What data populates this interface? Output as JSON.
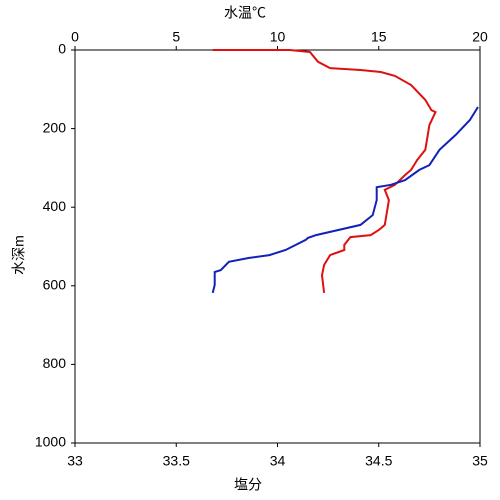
{
  "chart_data": {
    "type": "line",
    "xlabel": "塩分",
    "xlabel_color": "#cc0000",
    "x2label": "水温℃",
    "x2label_color": "#1f2fbf",
    "ylabel": "水深m",
    "xlim": [
      33,
      35
    ],
    "xticks": [
      33,
      33.5,
      34,
      34.5,
      35
    ],
    "x2lim": [
      0,
      20
    ],
    "x2ticks": [
      0,
      5,
      10,
      15,
      20
    ],
    "ylim": [
      1000,
      0
    ],
    "yticks": [
      0,
      200,
      400,
      600,
      800,
      1000
    ],
    "series": [
      {
        "color": "#dd1111",
        "axis": "x",
        "x": [
          33.68,
          34.06,
          34.16,
          34.2,
          34.26,
          34.41,
          34.51,
          34.58,
          34.66,
          34.73,
          34.76,
          34.78,
          34.75,
          34.73,
          34.69,
          34.66,
          34.63,
          34.58,
          34.53,
          34.55,
          34.53,
          34.5,
          34.46,
          34.36,
          34.33,
          34.33,
          34.26,
          34.23,
          34.22,
          34.23
        ],
        "values": [
          0,
          0,
          5,
          30,
          46,
          51,
          56,
          66,
          89,
          127,
          153,
          158,
          191,
          254,
          280,
          305,
          318,
          343,
          356,
          382,
          445,
          458,
          471,
          476,
          496,
          509,
          522,
          547,
          573,
          618
        ]
      },
      {
        "color": "#1122bb",
        "axis": "x2",
        "x": [
          19.9,
          19.5,
          18.8,
          18.0,
          17.5,
          17.0,
          16.3,
          15.6,
          14.9,
          14.9,
          14.7,
          14.1,
          11.9,
          11.5,
          11.4,
          10.4,
          9.6,
          8.6,
          7.6,
          7.2,
          6.9,
          6.9,
          6.8
        ],
        "values": [
          145,
          178,
          216,
          254,
          293,
          305,
          331,
          343,
          349,
          382,
          420,
          445,
          471,
          478,
          483,
          509,
          522,
          529,
          539,
          560,
          565,
          598,
          618
        ]
      }
    ]
  }
}
